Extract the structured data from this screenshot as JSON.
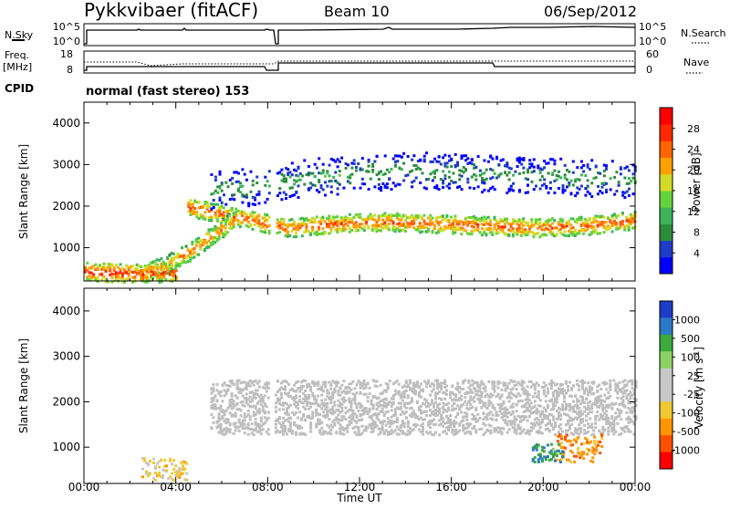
{
  "header": {
    "station": "Pykkvibaer (fitACF)",
    "beam": "Beam 10",
    "date": "06/Sep/2012"
  },
  "status_panels": {
    "nsky_label": "N.Sky",
    "nsky_ticks": [
      "10^5",
      "10^0"
    ],
    "nsearch_label": "N.Search",
    "nsearch_ticks": [
      "10^5",
      "10^0"
    ],
    "freq_label": "Freq.",
    "freq_unit": "[MHz]",
    "freq_ticks": [
      "18",
      "8"
    ],
    "nave_label": "Nave",
    "nave_ticks": [
      "60",
      "0"
    ],
    "cpid_label": "CPID",
    "cpid_value": "normal (fast stereo) 153"
  },
  "colors": {
    "power_scale": [
      "#0000ff",
      "#1e3cc8",
      "#2d8c3c",
      "#3cb45a",
      "#64d23c",
      "#d2dc28",
      "#ffa000",
      "#ff6400",
      "#ff2800",
      "#ff0000"
    ],
    "velocity_scale": [
      "#ff0000",
      "#ff5000",
      "#ff9600",
      "#f0c832",
      "#c8c8c8",
      "#c8c8c8",
      "#8cd264",
      "#3caa3c",
      "#2d78c8",
      "#1e3cc8"
    ],
    "ground_scatter": "#bebebe"
  },
  "chart_data": [
    {
      "type": "heatmap",
      "title": "Power",
      "xlabel": "Time UT",
      "ylabel": "Slant Range [km]",
      "x_ticks": [
        "00:00",
        "04:00",
        "08:00",
        "12:00",
        "16:00",
        "20:00",
        "00:00"
      ],
      "xlim_hours": [
        0,
        24
      ],
      "y_ticks": [
        1000,
        2000,
        3000,
        4000
      ],
      "ylim": [
        200,
        4500
      ],
      "colorbar_label": "Power [dB]",
      "colorbar_ticks": [
        4,
        8,
        12,
        16,
        20,
        24,
        28
      ],
      "colorbar_range": [
        0,
        32
      ],
      "data_gaps_hours": [
        [
          8.05,
          8.3
        ]
      ],
      "bands": [
        {
          "description": "main F-region echo, high power",
          "x_hours": [
            4.5,
            24
          ],
          "y_center_km": [
            2000,
            1750,
            1500,
            1600,
            1650,
            1600,
            1550,
            1500,
            1550,
            1700
          ],
          "power_db": 26
        },
        {
          "description": "outer ionospheric scatter, low power",
          "x_hours": [
            5.5,
            24
          ],
          "y_center_km": [
            2400,
            2500,
            2700,
            2800,
            2900,
            2850,
            2800,
            2750,
            2700,
            2650
          ],
          "power_db": 10
        },
        {
          "description": "morning rising echo",
          "x_hours": [
            2.5,
            6.5
          ],
          "y_center_km": [
            400,
            600,
            900,
            1300,
            1700
          ],
          "power_db": 24
        },
        {
          "description": "near-range scatter",
          "x_hours": [
            0,
            4
          ],
          "y_center_km": [
            450,
            420,
            400,
            450
          ],
          "power_db": 28
        }
      ]
    },
    {
      "type": "heatmap",
      "title": "Velocity",
      "xlabel": "Time UT",
      "ylabel": "Slant Range [km]",
      "x_ticks": [
        "00:00",
        "04:00",
        "08:00",
        "12:00",
        "16:00",
        "20:00",
        "00:00"
      ],
      "xlim_hours": [
        0,
        24
      ],
      "y_ticks": [
        1000,
        2000,
        3000,
        4000
      ],
      "ylim": [
        200,
        4500
      ],
      "colorbar_label": "Velocity [m s^-1]",
      "colorbar_ticks": [
        1000,
        500,
        100,
        25,
        -25,
        -100,
        -500,
        -1000
      ],
      "colorbar_range": [
        -1250,
        1250
      ],
      "data_gaps_hours": [
        [
          8.05,
          8.3
        ]
      ],
      "features": [
        {
          "description": "ground scatter band",
          "x_hours": [
            5.5,
            24
          ],
          "y_km": [
            1300,
            2500
          ],
          "velocity": 0
        },
        {
          "description": "away-moving patch",
          "x_hours": [
            20.5,
            22.5
          ],
          "y_km": [
            700,
            1300
          ],
          "velocity": -700
        },
        {
          "description": "toward-moving patch",
          "x_hours": [
            19.5,
            20.8
          ],
          "y_km": [
            700,
            1100
          ],
          "velocity": 800
        },
        {
          "description": "early morning away-moving echo",
          "x_hours": [
            2.5,
            4.5
          ],
          "y_km": [
            300,
            800
          ],
          "velocity": -400
        }
      ]
    }
  ]
}
